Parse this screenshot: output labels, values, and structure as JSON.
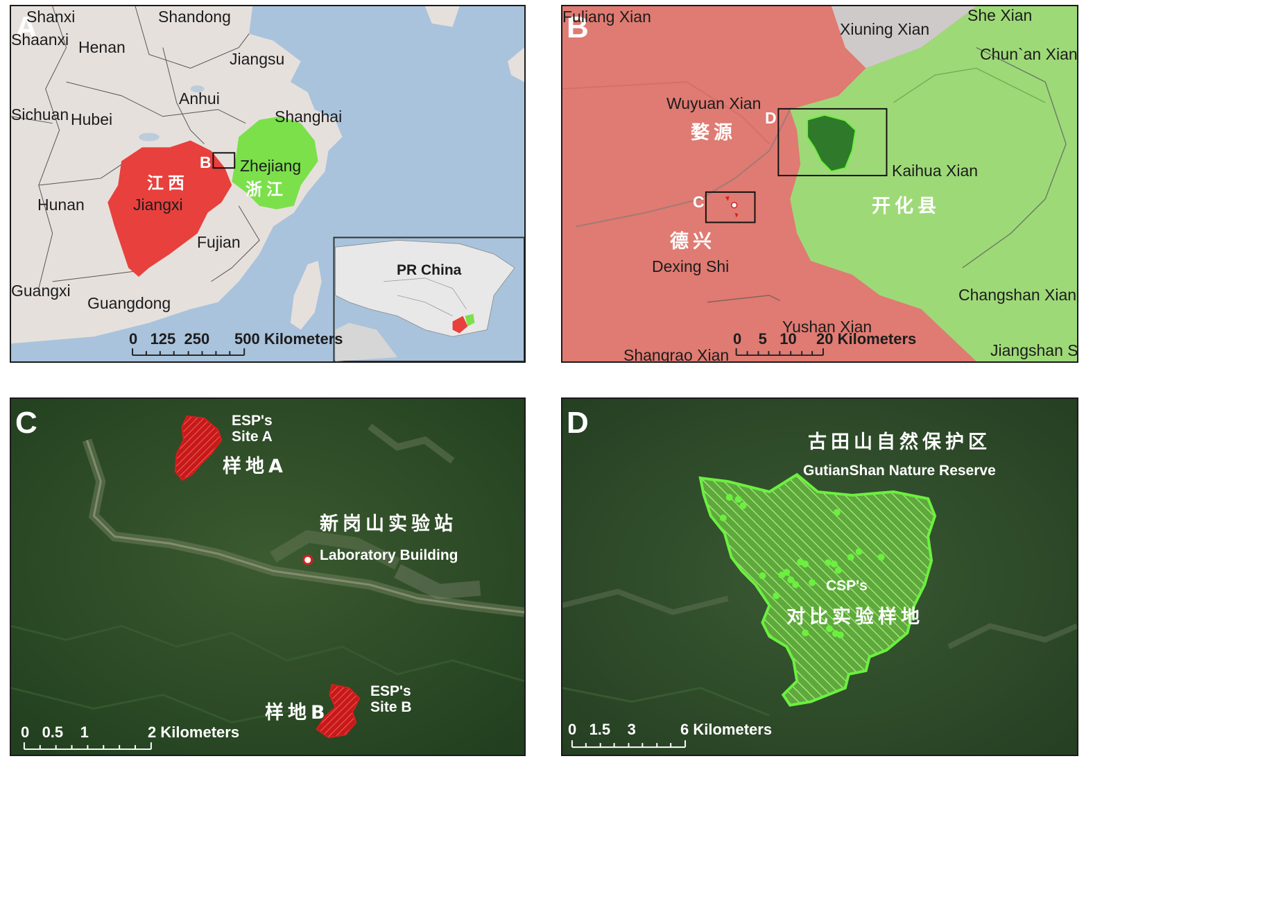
{
  "panels": {
    "a": {
      "letter": "A",
      "labels": {
        "shanxi": "Shanxi",
        "shandong": "Shandong",
        "shaanxi": "Shaanxi",
        "henan": "Henan",
        "jiangsu": "Jiangsu",
        "anhui": "Anhui",
        "sichuan": "Sichuan",
        "hubei": "Hubei",
        "shanghai": "Shanghai",
        "zhejiang": "Zhejiang",
        "zhejiang_cn": "浙江",
        "jiangxi": "Jiangxi",
        "jiangxi_cn": "江西",
        "hunan": "Hunan",
        "fujian": "Fujian",
        "guangxi": "Guangxi",
        "guangdong": "Guangdong",
        "box_b": "B"
      },
      "inset_title": "PR China",
      "scale": {
        "ticks": "0   125  250",
        "end": "500 Kilometers"
      }
    },
    "b": {
      "letter": "B",
      "labels": {
        "fuliang": "Fuliang Xian",
        "xiuning": "Xiuning Xian",
        "she": "She Xian",
        "chunan": "Chun`an Xian",
        "wuyuan": "Wuyuan Xian",
        "wuyuan_cn": "婺源",
        "kaihua": "Kaihua Xian",
        "kaihua_cn": "开化县",
        "dexing_cn": "德兴",
        "dexing": "Dexing Shi",
        "changshan": "Changshan Xian",
        "yushan": "Yushan Xian",
        "shangrao": "Shangrao Xian",
        "jiangshan": "Jiangshan Shi",
        "box_c": "C",
        "box_d": "D"
      },
      "scale": {
        "ticks": "0    5   10",
        "end": "20 Kilometers"
      }
    },
    "c": {
      "letter": "C",
      "site_a": {
        "label_line1": "ESP's",
        "label_line2": "Site A",
        "cn": "样地A"
      },
      "station_cn": "新岗山实验站",
      "lab_building": "Laboratory Building",
      "site_b": {
        "label_line1": "ESP's",
        "label_line2": "Site B",
        "cn": "样地B"
      },
      "scale": {
        "ticks": "0   0.5    1",
        "end": "2 Kilometers"
      }
    },
    "d": {
      "letter": "D",
      "reserve_cn": "古田山自然保护区",
      "reserve": "GutianShan Nature Reserve",
      "csp": "CSP's",
      "csp_cn": "对比实验样地",
      "scale": {
        "ticks": "0   1.5    3",
        "end": "6 Kilometers"
      }
    }
  },
  "colors": {
    "jiangxi_red": "#e8403d",
    "zhejiang_green": "#7be04a",
    "sea_blue": "#a9c3dc",
    "land_grey": "#e6e0dc",
    "relief_red": "#df7b72",
    "relief_green": "#9ed978",
    "forest_dark": "#2f5228",
    "hatch_green": "#6cf040",
    "site_red": "#d81e1e"
  },
  "icons": [
    "site-marker-icon",
    "scale-bar-icon"
  ]
}
